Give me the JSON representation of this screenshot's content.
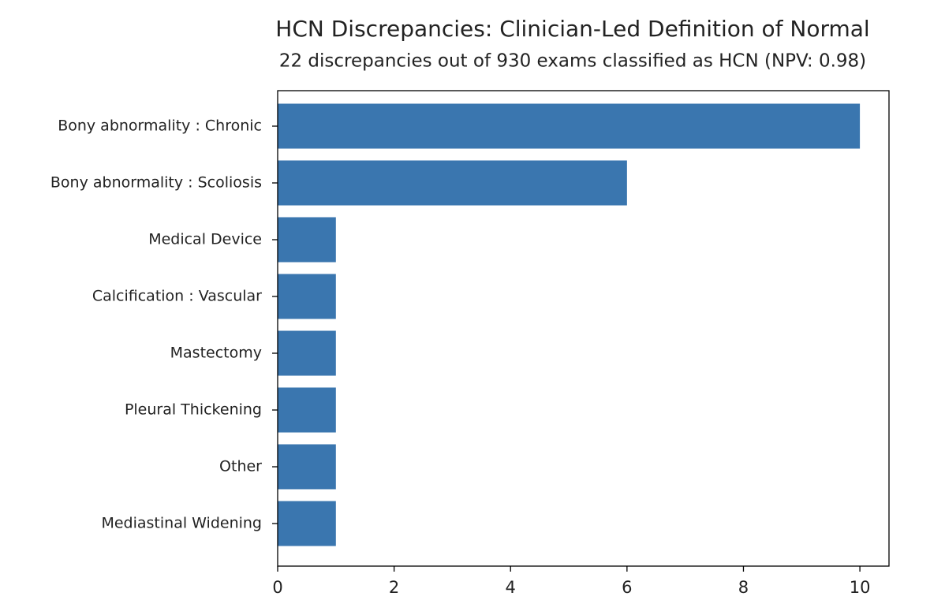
{
  "chart_data": {
    "type": "bar",
    "orientation": "horizontal",
    "title": "HCN Discrepancies: Clinician-Led Definition of Normal",
    "subtitle": "22 discrepancies out of 930 exams classified as HCN (NPV: 0.98)",
    "categories": [
      "Bony abnormality : Chronic",
      "Bony abnormality : Scoliosis",
      "Medical Device",
      "Calcification : Vascular",
      "Mastectomy",
      "Pleural Thickening",
      "Other",
      "Mediastinal Widening"
    ],
    "values": [
      10,
      6,
      1,
      1,
      1,
      1,
      1,
      1
    ],
    "color": "#3a76af",
    "xlim": [
      0,
      10.5
    ],
    "xticks": [
      0,
      2,
      4,
      6,
      8,
      10
    ],
    "grid": false
  }
}
